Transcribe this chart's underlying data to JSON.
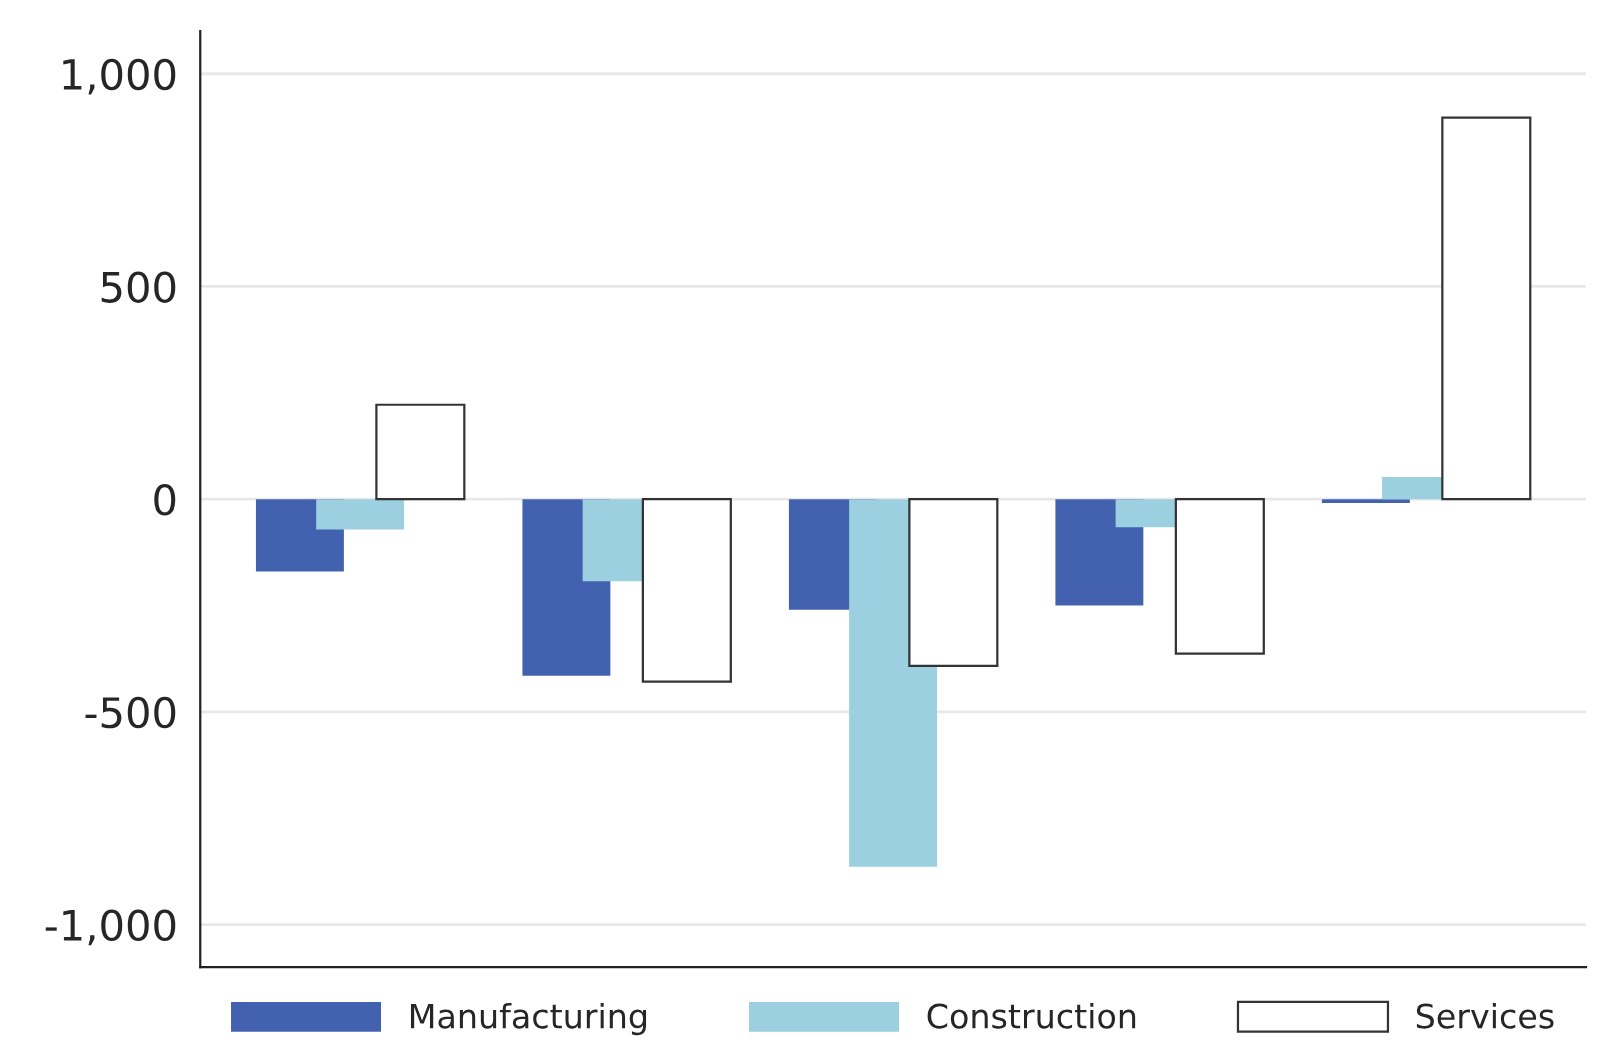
{
  "chart_data": {
    "type": "bar",
    "categories": [
      null,
      null,
      null,
      null,
      null
    ],
    "series": [
      {
        "name": "Manufacturing",
        "color": "#4262b0",
        "values": [
          -170,
          -415,
          -260,
          -250,
          -9
        ]
      },
      {
        "name": "Construction",
        "color": "#9ccfe0",
        "values": [
          -71,
          -193,
          -864,
          -66,
          52
        ]
      },
      {
        "name": "Services",
        "color": "#ffffff",
        "values": [
          222,
          -429,
          -392,
          -363,
          897
        ]
      }
    ],
    "ylim": [
      -1100,
      1100
    ],
    "yticks": [
      {
        "value": -1000,
        "label": "-1,000"
      },
      {
        "value": -500,
        "label": "-500"
      },
      0,
      500,
      {
        "value": 1000,
        "label": "1,000"
      }
    ],
    "grid": "y",
    "legend": "bottom"
  }
}
